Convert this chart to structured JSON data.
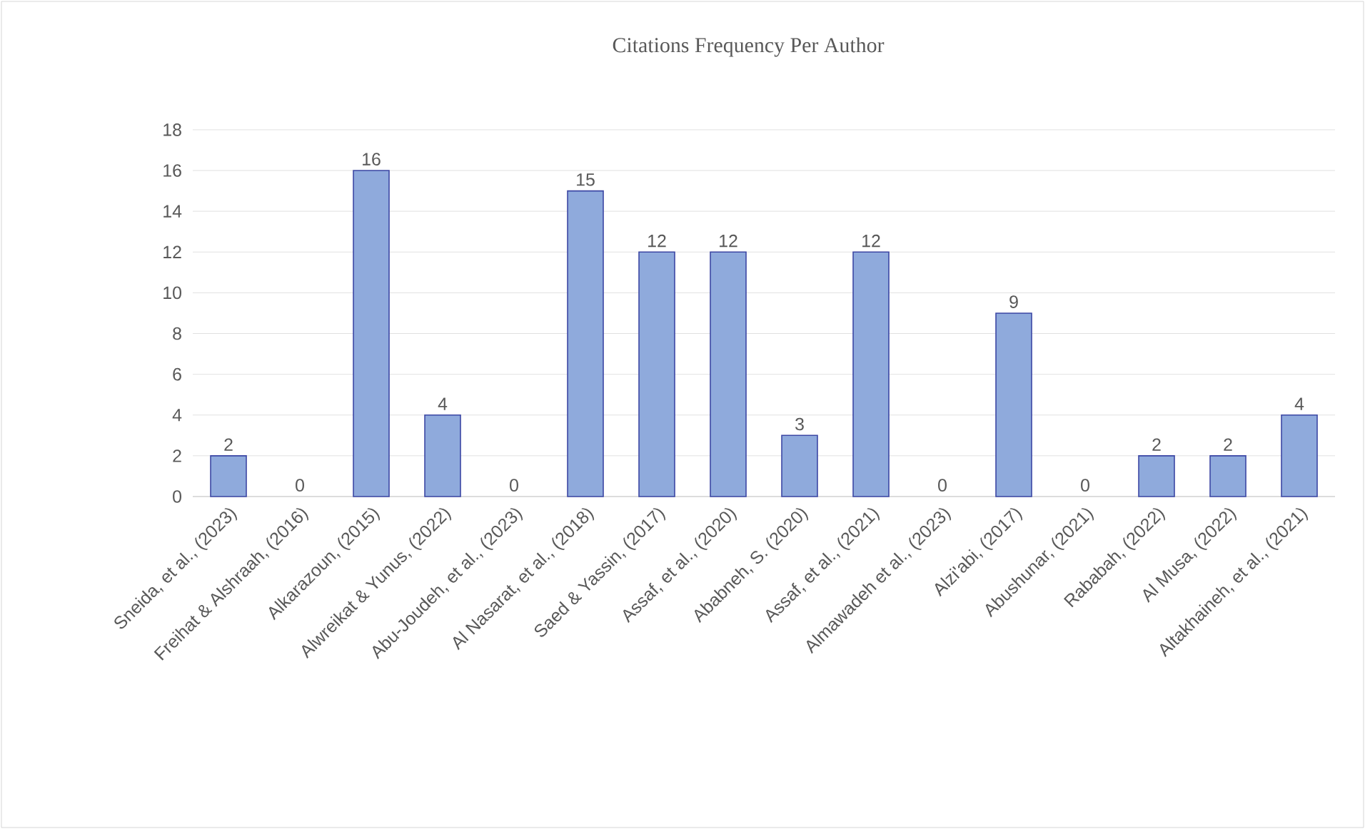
{
  "chart_data": {
    "type": "bar",
    "title": "Citations Frequency Per Author",
    "categories": [
      "Sneida, et al., (2023)",
      "Freihat & Alshraah, (2016)",
      "Alkarazoun, (2015)",
      "Alwreikat & Yunus, (2022)",
      "Abu-Joudeh, et al., (2023)",
      "Al Nasarat, et al., (2018)",
      "Saed & Yassin, (2017)",
      "Assaf, et al., (2020)",
      "Ababneh, S. (2020)",
      "Assaf, et al., (2021)",
      "Almawadeh et al., (2023)",
      "Alzi'abi, (2017)",
      "Abushunar, (2021)",
      "Rababah, (2022)",
      "Al Musa, (2022)",
      "Altakhaineh, et al., (2021)"
    ],
    "values": [
      2,
      0,
      16,
      4,
      0,
      15,
      12,
      12,
      3,
      12,
      0,
      9,
      0,
      2,
      2,
      4
    ],
    "color": "#8faadc",
    "ylim": [
      0,
      18
    ],
    "yticks": [
      0,
      2,
      4,
      6,
      8,
      10,
      12,
      14,
      16,
      18
    ],
    "grid": "y",
    "data_labels": true
  }
}
